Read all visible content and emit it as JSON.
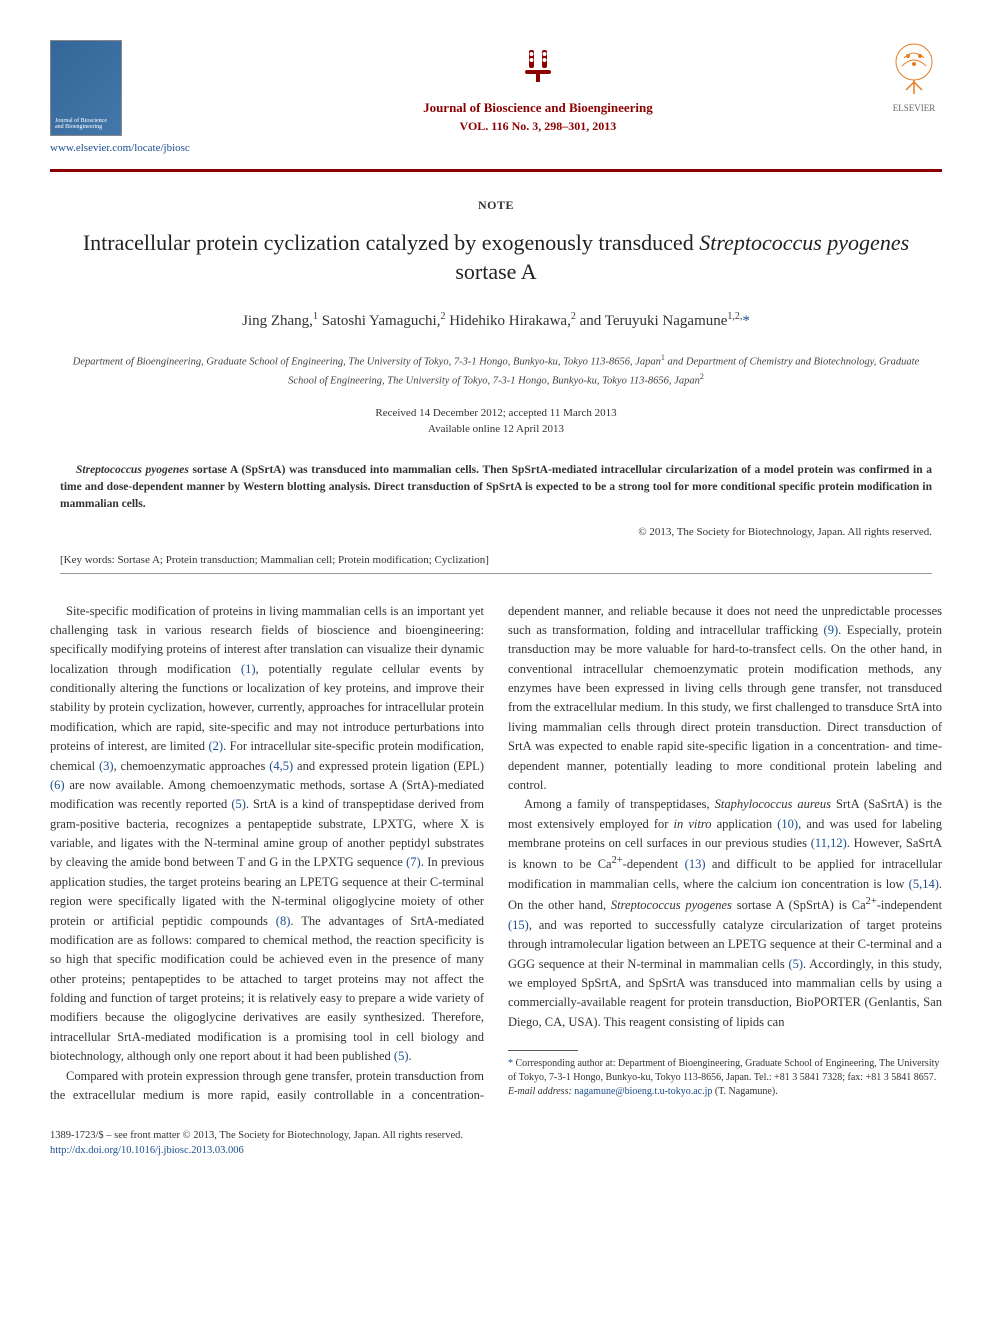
{
  "header": {
    "cover_text": "Journal of Bioscience and Bioengineering",
    "journal_title": "Journal of Bioscience and Bioengineering",
    "journal_vol": "VOL. 116 No. 3, 298–301, 2013",
    "locate_link": "www.elsevier.com/locate/jbiosc",
    "publisher": "ELSEVIER",
    "logo_color": "#8b0000"
  },
  "article": {
    "note_label": "NOTE",
    "title_pre": "Intracellular protein cyclization catalyzed by exogenously transduced ",
    "title_italic": "Streptococcus pyogenes",
    "title_post": " sortase A",
    "authors_html": "Jing Zhang,<sup>1</sup> Satoshi Yamaguchi,<sup>2</sup> Hidehiko Hirakawa,<sup>2</sup> and Teruyuki Nagamune<sup>1,2,</sup>",
    "corr_star": "*",
    "affiliations_html": "Department of Bioengineering, Graduate School of Engineering, The University of Tokyo, 7-3-1 Hongo, Bunkyo-ku, Tokyo 113-8656, Japan<sup>1</sup> and Department of Chemistry and Biotechnology, Graduate School of Engineering, The University of Tokyo, 7-3-1 Hongo, Bunkyo-ku, Tokyo 113-8656, Japan<sup>2</sup>",
    "received": "Received 14 December 2012; accepted 11 March 2013",
    "available": "Available online 12 April 2013",
    "abstract_pre_italic": "Streptococcus pyogenes",
    "abstract_text": " sortase A (SpSrtA) was transduced into mammalian cells. Then SpSrtA-mediated intracellular circularization of a model protein was confirmed in a time and dose-dependent manner by Western blotting analysis. Direct transduction of SpSrtA is expected to be a strong tool for more conditional specific protein modification in mammalian cells.",
    "copyright": "© 2013, The Society for Biotechnology, Japan. All rights reserved.",
    "keywords_label": "[Key words:",
    "keywords_text": " Sortase A; Protein transduction; Mammalian cell; Protein modification; Cyclization]"
  },
  "body": {
    "p1a": "Site-specific modification of proteins in living mammalian cells is an important yet challenging task in various research fields of bioscience and bioengineering: specifically modifying proteins of interest after translation can visualize their dynamic localization through modification ",
    "c1": "(1)",
    "p1b": ", potentially regulate cellular events by conditionally altering the functions or localization of key proteins, and improve their stability by protein cyclization, however, currently, approaches for intracellular protein modification, which are rapid, site-specific and may not introduce perturbations into proteins of interest, are limited ",
    "c2": "(2)",
    "p1c": ". For intracellular site-specific protein modification, chemical ",
    "c3": "(3)",
    "p1d": ", chemoenzymatic approaches ",
    "c45": "(4,5)",
    "p1e": " and expressed protein ligation (EPL) ",
    "c6": "(6)",
    "p1f": " are now available. Among chemoenzymatic methods, sortase A (SrtA)-mediated modification was recently reported ",
    "c5": "(5)",
    "p1g": ". SrtA is a kind of transpeptidase derived from gram-positive bacteria, recognizes a pentapeptide substrate, LPXTG, where X is variable, and ligates with the N-terminal amine group of another peptidyl substrates by cleaving the amide bond between T and G in the LPXTG sequence ",
    "c7": "(7)",
    "p1h": ". In previous application studies, the target proteins bearing an LPETG sequence at their C-terminal region were specifically ligated with the N-terminal oligoglycine moiety of other protein or artificial peptidic compounds ",
    "c8": "(8)",
    "p1i": ". The advantages of SrtA-mediated modification are as follows: compared to chemical method, the reaction specificity is so high that specific modification could be achieved even in the presence of many other proteins; pentapeptides to be attached to target proteins may not affect the folding and function of target proteins; it is relatively easy to prepare a wide variety of modifiers because the oligoglycine derivatives are easily synthesized. Therefore, intracellular SrtA-mediated modification is a promising tool in cell biology and biotechnology, although only one report about it had been published ",
    "c5b": "(5)",
    "p1j": ".",
    "p2a": "Compared with protein expression through gene transfer, protein transduction from the extracellular medium is more rapid, easily controllable in a concentration-dependent manner, and reliable because it does not need the unpredictable processes such as transformation, folding and intracellular trafficking ",
    "c9": "(9)",
    "p2b": ". Especially, protein transduction may be more valuable for hard-to-transfect cells. On the other hand, in conventional intracellular chemoenzymatic protein modification methods, any enzymes have been expressed in living cells through gene transfer, not transduced from the extracellular medium. In this study, we first challenged to transduce SrtA into living mammalian cells through direct protein transduction. Direct transduction of SrtA was expected to enable rapid site-specific ligation in a concentration- and time-dependent manner, potentially leading to more conditional protein labeling and control.",
    "p3a": "Among a family of transpeptidases, ",
    "p3_italic1": "Staphylococcus aureus",
    "p3b": " SrtA (SaSrtA) is the most extensively employed for ",
    "p3_italic2": "in vitro",
    "p3c": " application ",
    "c10": "(10)",
    "p3d": ", and was used for labeling membrane proteins on cell surfaces in our previous studies ",
    "c1112": "(11,12)",
    "p3e": ". However, SaSrtA is known to be Ca",
    "sup2plus": "2+",
    "p3f": "-dependent ",
    "c13": "(13)",
    "p3g": " and difficult to be applied for intracellular modification in mammalian cells, where the calcium ion concentration is low ",
    "c514": "(5,14)",
    "p3h": ". On the other hand, ",
    "p3_italic3": "Streptococcus pyogenes",
    "p3i": " sortase A (SpSrtA) is Ca",
    "p3j": "-independent ",
    "c15": "(15)",
    "p3k": ", and was reported to successfully catalyze circularization of target proteins through intramolecular ligation between an LPETG sequence at their C-terminal and a GGG sequence at their N-terminal in mammalian cells ",
    "c5c": "(5)",
    "p3l": ". Accordingly, in this study, we employed SpSrtA, and SpSrtA was transduced into mammalian cells by using a commercially-available reagent for protein transduction, BioPORTER (Genlantis, San Diego, CA, USA). This reagent consisting of lipids can"
  },
  "footnote": {
    "star": "*",
    "corr_text": " Corresponding author at: Department of Bioengineering, Graduate School of Engineering, The University of Tokyo, 7-3-1 Hongo, Bunkyo-ku, Tokyo 113-8656, Japan. Tel.: +81 3 5841 7328; fax: +81 3 5841 8657.",
    "email_label": "E-mail address:",
    "email": "nagamune@bioeng.t.u-tokyo.ac.jp",
    "email_suffix": " (T. Nagamune)."
  },
  "footer": {
    "issn_line": "1389-1723/$ – see front matter © 2013, The Society for Biotechnology, Japan. All rights reserved.",
    "doi": "http://dx.doi.org/10.1016/j.jbiosc.2013.03.006"
  },
  "colors": {
    "accent": "#8b0000",
    "link": "#1a4d8f",
    "text": "#333333"
  }
}
